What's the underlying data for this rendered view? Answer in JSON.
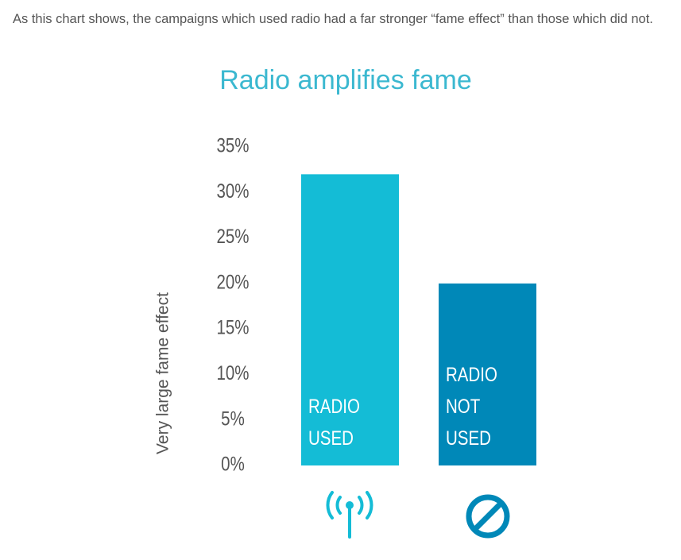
{
  "intro": "As this chart shows, the campaigns which used radio had a far stronger “fame effect” than those which did not.",
  "chart_data": {
    "type": "bar",
    "title": "Radio amplifies fame",
    "y_label": "Very large fame effect",
    "categories": [
      "RADIO USED",
      "RADIO NOT USED"
    ],
    "series": [
      {
        "values": [
          32,
          20
        ],
        "colors": [
          "#14bcd6",
          "#0088b8"
        ]
      }
    ],
    "ylim": [
      0,
      35
    ],
    "yticks": [
      {
        "value": 0,
        "label": "0%"
      },
      {
        "value": 5,
        "label": "5%"
      },
      {
        "value": 10,
        "label": "10%"
      },
      {
        "value": 15,
        "label": "15%"
      },
      {
        "value": 20,
        "label": "20%"
      },
      {
        "value": 25,
        "label": "25%"
      },
      {
        "value": 30,
        "label": "30%"
      },
      {
        "value": 35,
        "label": "35%"
      }
    ]
  }
}
